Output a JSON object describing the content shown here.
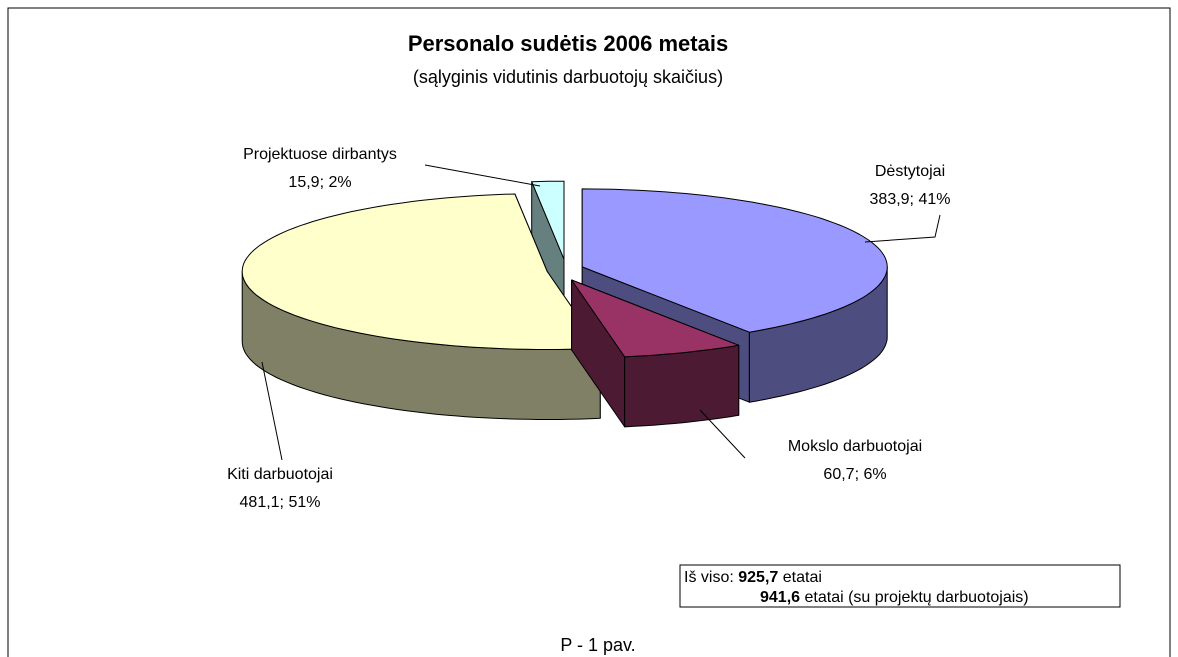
{
  "chart_data": {
    "type": "pie3d",
    "title": "Personalo sudėtis 2006 metais",
    "subtitle": "(sąlyginis vidutinis darbuotojų skaičius)",
    "categories": [
      "Dėstytojai",
      "Mokslo darbuotojai",
      "Kiti darbuotojai",
      "Projektuose dirbantys"
    ],
    "values": [
      383.9,
      60.7,
      481.1,
      15.9
    ],
    "value_labels": [
      "383,9; 41%",
      "60,7; 6%",
      "481,1; 51%",
      "15,9; 2%"
    ],
    "colors": [
      "#9999ff",
      "#993366",
      "#ffffcc",
      "#ccffff"
    ],
    "total_note": {
      "prefix": "Iš viso:",
      "total": "925,7",
      "unit": "etatai",
      "total2": "941,6",
      "suffix2": "etatai (su projektų darbuotojais)"
    },
    "caption": "P - 1 pav."
  }
}
